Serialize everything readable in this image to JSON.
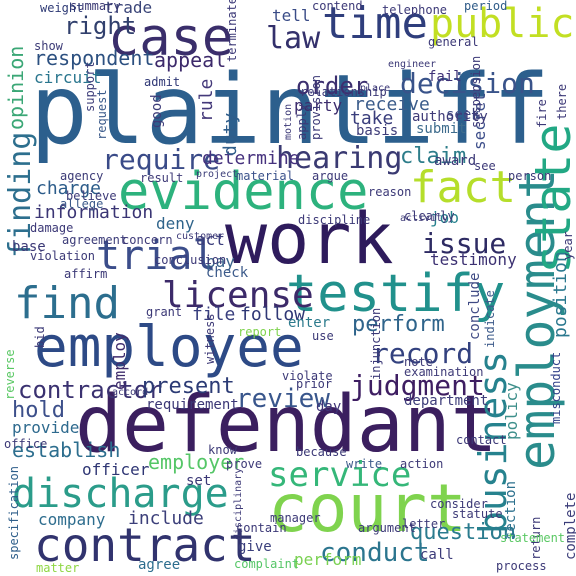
{
  "words": [
    {
      "text": "plaintiff",
      "color": "#2c5f8d"
    },
    {
      "text": "defendant",
      "color": "#3b1f5f"
    },
    {
      "text": "work",
      "color": "#2e1b5c"
    },
    {
      "text": "court",
      "color": "#7fd34e"
    },
    {
      "text": "employee",
      "color": "#2d4a86"
    },
    {
      "text": "employment",
      "color": "#2a8c8c"
    },
    {
      "text": "testify",
      "color": "#21918c"
    },
    {
      "text": "state",
      "color": "#22a884"
    },
    {
      "text": "evidence",
      "color": "#2db27d"
    },
    {
      "text": "case",
      "color": "#3a2e6b"
    },
    {
      "text": "time",
      "color": "#2f3e7c"
    },
    {
      "text": "public",
      "color": "#c2df23"
    },
    {
      "text": "fact",
      "color": "#b5de2b"
    },
    {
      "text": "discharge",
      "color": "#2b9c8a"
    },
    {
      "text": "contract",
      "color": "#31336e"
    },
    {
      "text": "business",
      "color": "#26828e"
    },
    {
      "text": "service",
      "color": "#35b779"
    },
    {
      "text": "trial",
      "color": "#3b4d8a"
    },
    {
      "text": "find",
      "color": "#2c6e8e"
    },
    {
      "text": "license",
      "color": "#3c2a69"
    },
    {
      "text": "finding",
      "color": "#2d6f8e"
    },
    {
      "text": "law",
      "color": "#33306b"
    },
    {
      "text": "decision",
      "color": "#39538a"
    },
    {
      "text": "hearing",
      "color": "#3a3a72"
    },
    {
      "text": "require",
      "color": "#3a4b88"
    },
    {
      "text": "judgment",
      "color": "#3e1e62"
    },
    {
      "text": "record",
      "color": "#33417f"
    },
    {
      "text": "issue",
      "color": "#2e2b63"
    },
    {
      "text": "perform",
      "color": "#2f648b"
    },
    {
      "text": "conduct",
      "color": "#2b758e"
    },
    {
      "text": "question",
      "color": "#2a7b8e"
    },
    {
      "text": "right",
      "color": "#31406d"
    },
    {
      "text": "order",
      "color": "#3c2f6f"
    },
    {
      "text": "respondent",
      "color": "#2c5080"
    },
    {
      "text": "review",
      "color": "#3b6d8b"
    },
    {
      "text": "claim",
      "color": "#39568c"
    },
    {
      "text": "employer",
      "color": "#2d7d8a"
    },
    {
      "text": "contractor",
      "color": "#55c667"
    },
    {
      "text": "hold",
      "color": "#3a3170"
    },
    {
      "text": "present",
      "color": "#3c4f8a"
    },
    {
      "text": "trade",
      "color": "#2c3b75"
    },
    {
      "text": "establish",
      "color": "#3a4578"
    },
    {
      "text": "appeal",
      "color": "#2d6e8e"
    },
    {
      "text": "job",
      "color": "#3d2a6b"
    },
    {
      "text": "testimony",
      "color": "#26828e"
    },
    {
      "text": "determine",
      "color": "#3c3172"
    },
    {
      "text": "opinion",
      "color": "#46327e"
    },
    {
      "text": "duty",
      "color": "#3ba776"
    },
    {
      "text": "information",
      "color": "#2f5d8a"
    },
    {
      "text": "charge",
      "color": "#3a3574"
    },
    {
      "text": "provide",
      "color": "#2c5c8a"
    },
    {
      "text": "company",
      "color": "#2e6a8e"
    },
    {
      "text": "include",
      "color": "#2e6d8e"
    },
    {
      "text": "officer",
      "color": "#3c3f7a"
    },
    {
      "text": "secret",
      "color": "#2f3674"
    },
    {
      "text": "policy",
      "color": "#3d4e8a"
    },
    {
      "text": "section",
      "color": "#3e8f8b"
    },
    {
      "text": "position",
      "color": "#2d718e"
    },
    {
      "text": "follow",
      "color": "#2a788e"
    },
    {
      "text": "file",
      "color": "#2f3775"
    },
    {
      "text": "pay",
      "color": "#393f7e"
    },
    {
      "text": "act",
      "color": "#39628b"
    },
    {
      "text": "deny",
      "color": "#3a3d7b"
    },
    {
      "text": "receive",
      "color": "#2f648b"
    },
    {
      "text": "party",
      "color": "#3b5c8b"
    },
    {
      "text": "take",
      "color": "#3c2c6d"
    },
    {
      "text": "rule",
      "color": "#3a3e7c"
    },
    {
      "text": "circuit",
      "color": "#44397a"
    },
    {
      "text": "tell",
      "color": "#2a768e"
    },
    {
      "text": "fail",
      "color": "#3a4c87"
    },
    {
      "text": "seek",
      "color": "#3e3177"
    },
    {
      "text": "enter",
      "color": "#3d4b86"
    },
    {
      "text": "practice",
      "color": "#2d7b8d"
    },
    {
      "text": "perform",
      "color": "#2f648b"
    },
    {
      "text": "give",
      "color": "#7ad151"
    },
    {
      "text": "call",
      "color": "#3a3f7c"
    },
    {
      "text": "agree",
      "color": "#3c3b79"
    },
    {
      "text": "complaint",
      "color": "#2d6d8e"
    },
    {
      "text": "matter",
      "color": "#55c667"
    },
    {
      "text": "specification",
      "color": "#8fd744"
    },
    {
      "text": "complete",
      "color": "#2e5e8a"
    },
    {
      "text": "misconduct",
      "color": "#3b3d79"
    },
    {
      "text": "requirement",
      "color": "#33428a"
    },
    {
      "text": "employ",
      "color": "#3c3876"
    },
    {
      "text": "day",
      "color": "#3f2c6c"
    },
    {
      "text": "department",
      "color": "#3e3377"
    },
    {
      "text": "conclude",
      "color": "#3e3d7a"
    },
    {
      "text": "indicate",
      "color": "#3f4a84"
    },
    {
      "text": "authority",
      "color": "#3d5b8b"
    },
    {
      "text": "submit",
      "color": "#3f3b78"
    },
    {
      "text": "basis",
      "color": "#3e6c8d"
    },
    {
      "text": "period",
      "color": "#3e3c78"
    },
    {
      "text": "summary",
      "color": "#2f5b88"
    },
    {
      "text": "weight",
      "color": "#3b3a74"
    },
    {
      "text": "show",
      "color": "#2e3a75"
    },
    {
      "text": "admit",
      "color": "#3b3a76"
    },
    {
      "text": "request",
      "color": "#2f3775"
    },
    {
      "text": "support",
      "color": "#3a5a8a"
    },
    {
      "text": "good",
      "color": "#3f3f7b"
    },
    {
      "text": "result",
      "color": "#3d3c79"
    },
    {
      "text": "project",
      "color": "#3e3a77"
    },
    {
      "text": "agency",
      "color": "#3a3c78"
    },
    {
      "text": "believe",
      "color": "#3b3a76"
    },
    {
      "text": "allege",
      "color": "#3c3977"
    },
    {
      "text": "agreement",
      "color": "#3c5a8a"
    },
    {
      "text": "affirm",
      "color": "#3b3b78"
    },
    {
      "text": "violation",
      "color": "#3b3876"
    },
    {
      "text": "base",
      "color": "#3c3a77"
    },
    {
      "text": "bid",
      "color": "#3b3876"
    },
    {
      "text": "reverse",
      "color": "#3c3a77"
    },
    {
      "text": "report",
      "color": "#5ac864"
    },
    {
      "text": "witness",
      "color": "#7fd34e"
    },
    {
      "text": "grant",
      "color": "#3e3a77"
    },
    {
      "text": "use",
      "color": "#3b3876"
    },
    {
      "text": "prior",
      "color": "#3b3876"
    },
    {
      "text": "note",
      "color": "#3c3977"
    },
    {
      "text": "examination",
      "color": "#3e3a77"
    },
    {
      "text": "because",
      "color": "#3e3a77"
    },
    {
      "text": "write",
      "color": "#3b3876"
    },
    {
      "text": "action",
      "color": "#3c5a8a"
    },
    {
      "text": "know",
      "color": "#3e3a77"
    },
    {
      "text": "set",
      "color": "#3c3977"
    },
    {
      "text": "return",
      "color": "#3b3876"
    },
    {
      "text": "statement",
      "color": "#3c3977"
    },
    {
      "text": "consider",
      "color": "#5ac864"
    },
    {
      "text": "clearly",
      "color": "#3c3977"
    },
    {
      "text": "award",
      "color": "#3c3977"
    },
    {
      "text": "see",
      "color": "#3c3977"
    },
    {
      "text": "reason",
      "color": "#3c3977"
    },
    {
      "text": "argue",
      "color": "#3c3977"
    },
    {
      "text": "material",
      "color": "#3c3977"
    },
    {
      "text": "injunction",
      "color": "#3b528b"
    },
    {
      "text": "year",
      "color": "#3c3977"
    },
    {
      "text": "suspension",
      "color": "#3c3977"
    },
    {
      "text": "fire",
      "color": "#3c3977"
    },
    {
      "text": "check",
      "color": "#3c3977"
    },
    {
      "text": "office",
      "color": "#3c5a8a"
    },
    {
      "text": "process",
      "color": "#3c3977"
    },
    {
      "text": "disciplinary",
      "color": "#3c3977"
    },
    {
      "text": "general",
      "color": "#3c3977"
    },
    {
      "text": "terminate",
      "color": "#3c3977"
    },
    {
      "text": "telephone",
      "color": "#3c3977"
    },
    {
      "text": "contend",
      "color": "#3c3977"
    },
    {
      "text": "prove",
      "color": "#3c3977"
    },
    {
      "text": "manager",
      "color": "#3c3977"
    },
    {
      "text": "contain",
      "color": "#3c3977"
    },
    {
      "text": "argument",
      "color": "#3c3977"
    },
    {
      "text": "letter",
      "color": "#3c3977"
    },
    {
      "text": "statute",
      "color": "#3c3977"
    },
    {
      "text": "contact",
      "color": "#3c3977"
    },
    {
      "text": "violate",
      "color": "#3c3977"
    },
    {
      "text": "accord",
      "color": "#3c3977"
    },
    {
      "text": "activity",
      "color": "#3c3977"
    },
    {
      "text": "conclusion",
      "color": "#3c3977"
    },
    {
      "text": "discipline",
      "color": "#3c3977"
    },
    {
      "text": "concern",
      "color": "#3c3977"
    },
    {
      "text": "customer",
      "color": "#3c3977"
    },
    {
      "text": "damage",
      "color": "#3c3977"
    },
    {
      "text": "person",
      "color": "#3c3977"
    },
    {
      "text": "apply",
      "color": "#3c3977"
    },
    {
      "text": "provision",
      "color": "#3c3977"
    },
    {
      "text": "motion",
      "color": "#3c3977"
    },
    {
      "text": "relationship",
      "color": "#3c3977"
    },
    {
      "text": "place",
      "color": "#3c3977"
    },
    {
      "text": "engineer",
      "color": "#3c3977"
    },
    {
      "text": "there",
      "color": "#3c3977"
    },
    {
      "text": "however",
      "color": "#3c3977"
    },
    {
      "text": "terminate",
      "color": "#3c3977"
    },
    {
      "text": "testimony",
      "color": "#3c3977"
    }
  ]
}
